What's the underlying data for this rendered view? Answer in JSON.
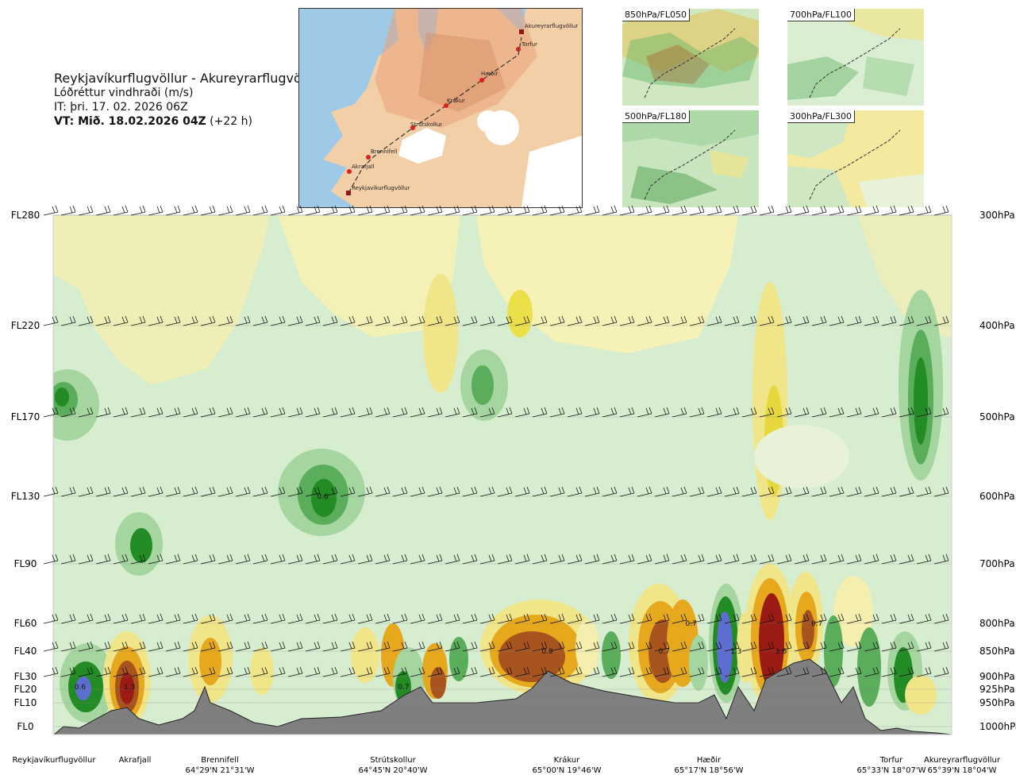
{
  "header": {
    "route": "Reykjavíkurflugvöllur - Akureyrarflugvöllur",
    "parameter": "Lóðréttur vindhraði (m/s)",
    "issue_time": "IT: þri. 17. 02. 2026 06Z",
    "valid_time_bold": "VT: Mið. 18.02.2026 04Z",
    "valid_offset": "(+22 h)"
  },
  "route_map": {
    "waypoints": [
      "Akureyrarflugvöllur",
      "Torfur",
      "Hæðir",
      "Krákur",
      "Strútskollur",
      "Brennifell",
      "Akrafjall",
      "Reykjavíkurflugvöllur"
    ]
  },
  "thumbnails": [
    {
      "label": "850hPa/FL050"
    },
    {
      "label": "700hPa/FL100"
    },
    {
      "label": "500hPa/FL180"
    },
    {
      "label": "300hPa/FL300"
    }
  ],
  "chart_data": {
    "type": "heatmap",
    "title": "Reykjavíkurflugvöllur - Akureyrarflugvöllur",
    "subtitle": "Lóðréttur vindhraði (m/s)",
    "flight_levels": [
      "FL280",
      "FL220",
      "FL170",
      "FL130",
      "FL90",
      "FL60",
      "FL40",
      "FL30",
      "FL20",
      "FL10",
      "FL0"
    ],
    "pressure_levels": [
      "300hPa",
      "400hPa",
      "500hPa",
      "600hPa",
      "700hPa",
      "800hPa",
      "850hPa",
      "900hPa",
      "925hPa",
      "950hPa",
      "1000hPa"
    ],
    "fl_values": [
      280,
      220,
      170,
      130,
      90,
      60,
      40,
      30,
      20,
      10,
      0
    ],
    "hpa_values": [
      300,
      400,
      500,
      600,
      700,
      800,
      850,
      900,
      925,
      950,
      1000
    ],
    "x_positions": [
      0,
      0.07,
      0.17,
      0.38,
      0.56,
      0.75,
      0.93,
      1.0
    ],
    "location_labels": [
      {
        "name": "Reykjavíkurflugvöllur",
        "coord": ""
      },
      {
        "name": "Akrafjall",
        "coord": ""
      },
      {
        "name": "Brennifell",
        "coord": "64°29'N 21°31'W"
      },
      {
        "name": "Strútskollur",
        "coord": "64°45'N 20°40'W"
      },
      {
        "name": "Krákur",
        "coord": "65°00'N 19°46'W"
      },
      {
        "name": "Hæðir",
        "coord": "65°17'N 18°56'W"
      },
      {
        "name": "Torfur",
        "coord": "65°33'N 18°07'W"
      },
      {
        "name": "Akureyrarflugvöllur",
        "coord": "65°39'N 18°04'W"
      }
    ],
    "annotations": [
      {
        "text": "0.6",
        "x": 0.03,
        "hpa": 920
      },
      {
        "text": "1.3",
        "x": 0.085,
        "hpa": 920
      },
      {
        "text": "0.6",
        "x": 0.3,
        "hpa": 600
      },
      {
        "text": "0.7",
        "x": 0.39,
        "hpa": 920
      },
      {
        "text": "0.8",
        "x": 0.55,
        "hpa": 850
      },
      {
        "text": "0.7",
        "x": 0.68,
        "hpa": 850
      },
      {
        "text": "0.7",
        "x": 0.71,
        "hpa": 800
      },
      {
        "text": "1.3",
        "x": 0.76,
        "hpa": 850
      },
      {
        "text": "1.6",
        "x": 0.81,
        "hpa": 850
      },
      {
        "text": "0.7",
        "x": 0.85,
        "hpa": 800
      }
    ],
    "colors": {
      "strong_up": "#5c6fd0",
      "up_dark": "#238b23",
      "up_mid": "#5aad5a",
      "up_light": "#a6d6a0",
      "up_faint": "#d6edd0",
      "neutral": "#ffffff",
      "down_faint": "#fbf3b8",
      "down_light": "#ece04a",
      "down_mid": "#e6a81c",
      "down_dark": "#a8541e",
      "strong_down": "#9a1a14",
      "terrain": "#7f7f7f"
    }
  }
}
